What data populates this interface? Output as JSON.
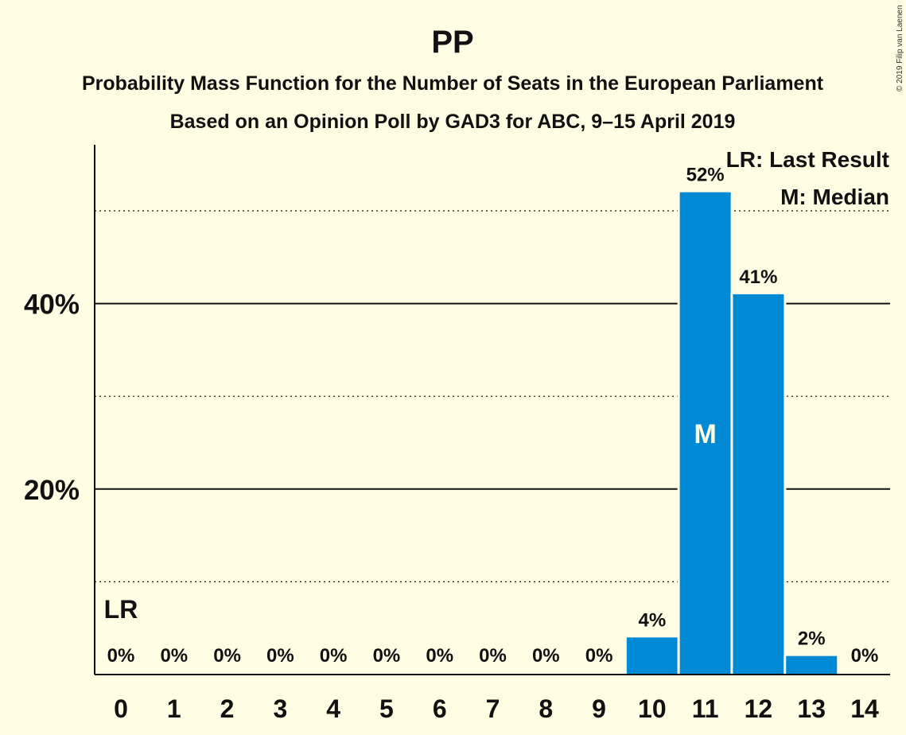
{
  "chart_data": {
    "type": "bar",
    "title": "PP",
    "subtitle1": "Probability Mass Function for the Number of Seats in the European Parliament",
    "subtitle2": "Based on an Opinion Poll by GAD3 for ABC, 9–15 April 2019",
    "copyright": "© 2019 Filip van Laenen",
    "categories": [
      "0",
      "1",
      "2",
      "3",
      "4",
      "5",
      "6",
      "7",
      "8",
      "9",
      "10",
      "11",
      "12",
      "13",
      "14"
    ],
    "values": [
      0,
      0,
      0,
      0,
      0,
      0,
      0,
      0,
      0,
      0,
      4,
      52,
      41,
      2,
      0
    ],
    "value_labels": [
      "0%",
      "0%",
      "0%",
      "0%",
      "0%",
      "0%",
      "0%",
      "0%",
      "0%",
      "0%",
      "4%",
      "52%",
      "41%",
      "2%",
      "0%"
    ],
    "ylim": [
      0,
      57
    ],
    "yticks": [
      {
        "value": 20,
        "label": "20%"
      },
      {
        "value": 40,
        "label": "40%"
      }
    ],
    "minor_gridlines": [
      10,
      30,
      50
    ],
    "bar_color": "#008AD6",
    "last_result": {
      "seats": 0,
      "label": "LR"
    },
    "median": {
      "seats": 11,
      "label": "M"
    },
    "legend": {
      "position": "top-right",
      "entries": [
        "LR: Last Result",
        "M: Median"
      ]
    }
  }
}
